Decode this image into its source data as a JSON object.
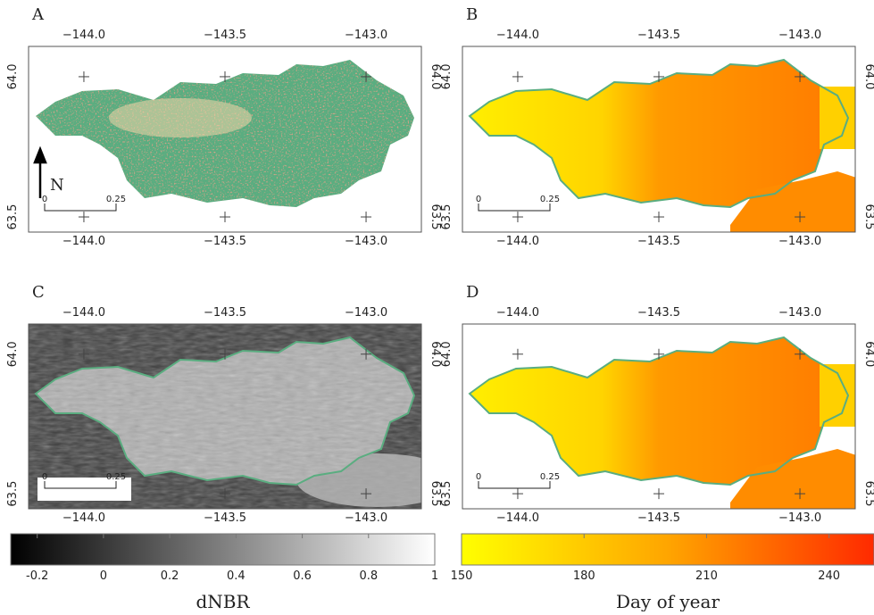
{
  "panels": [
    {
      "label": "A",
      "xlim": [
        -144.196,
        -142.804
      ],
      "ylim": [
        63.446,
        64.108
      ],
      "xticks": [
        {
          "value": -144,
          "label": "−144.0"
        },
        {
          "value": -143.5,
          "label": "−143.5"
        },
        {
          "value": -143,
          "label": "−143.0"
        }
      ],
      "yticks": [
        {
          "value": 64,
          "label": "64.0"
        },
        {
          "value": 63.5,
          "label": "63.5"
        }
      ],
      "scale_bar": [
        "0",
        "0.25"
      ],
      "north": "N"
    },
    {
      "label": "B",
      "xlim": [
        -144.196,
        -142.804
      ],
      "ylim": [
        63.446,
        64.108
      ],
      "xticks": [
        {
          "value": -144,
          "label": "−144.0"
        },
        {
          "value": -143.5,
          "label": "−143.5"
        },
        {
          "value": -143,
          "label": "−143.0"
        }
      ],
      "yticks": [
        {
          "value": 64,
          "label": "64.0"
        },
        {
          "value": 63.5,
          "label": "63.5"
        }
      ],
      "scale_bar": [
        "0",
        "0.25"
      ]
    },
    {
      "label": "C",
      "xlim": [
        -144.196,
        -142.804
      ],
      "ylim": [
        63.446,
        64.108
      ],
      "xticks": [
        {
          "value": -144,
          "label": "−144.0"
        },
        {
          "value": -143.5,
          "label": "−143.5"
        },
        {
          "value": -143,
          "label": "−143.0"
        }
      ],
      "yticks": [
        {
          "value": 64,
          "label": "64.0"
        },
        {
          "value": 63.5,
          "label": "63.5"
        }
      ],
      "scale_bar": [
        "0",
        "0.25"
      ]
    },
    {
      "label": "D",
      "xlim": [
        -144.196,
        -142.804
      ],
      "ylim": [
        63.446,
        64.108
      ],
      "xticks": [
        {
          "value": -144,
          "label": "−144.0"
        },
        {
          "value": -143.5,
          "label": "−143.5"
        },
        {
          "value": -143,
          "label": "−143.0"
        }
      ],
      "yticks": [
        {
          "value": 64,
          "label": "64.0"
        },
        {
          "value": 63.5,
          "label": "63.5"
        }
      ],
      "scale_bar": [
        "0",
        "0.25"
      ]
    }
  ],
  "colorbars": [
    {
      "label": "dNBR",
      "lim": [
        -0.28,
        1
      ],
      "ticks": [
        -0.2,
        0,
        0.2,
        0.4,
        0.6,
        0.8,
        1
      ]
    },
    {
      "label": "Day of year",
      "lim": [
        150,
        251
      ],
      "ticks": [
        150,
        180,
        210,
        240
      ]
    }
  ]
}
